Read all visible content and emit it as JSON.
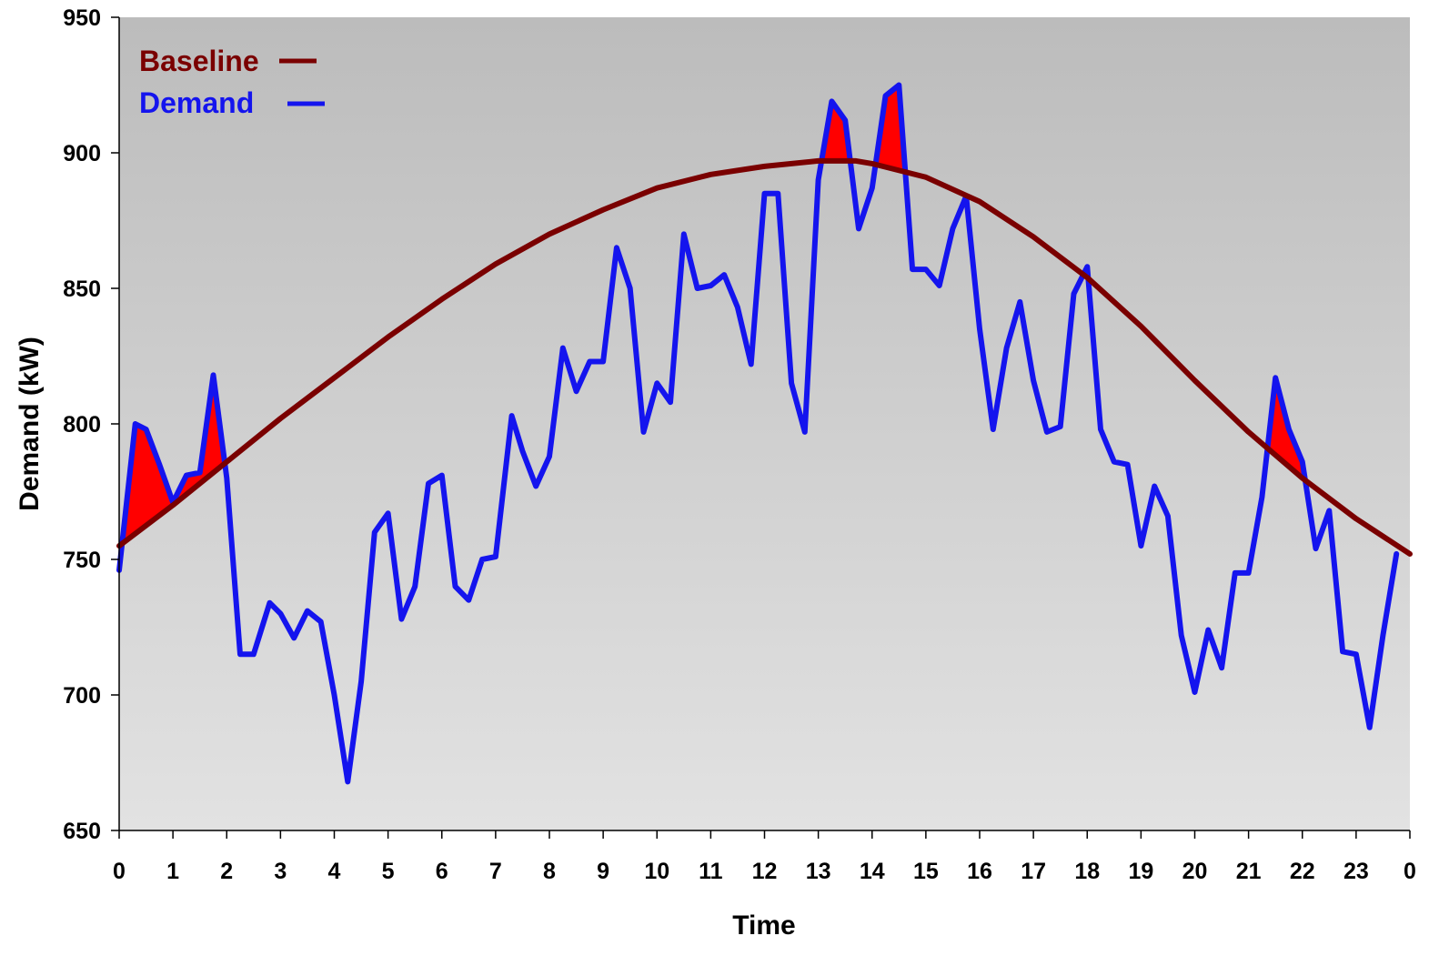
{
  "chart_data": {
    "type": "line",
    "title": "",
    "xlabel": "Time",
    "ylabel": "Demand (kW)",
    "xlim": [
      0,
      24
    ],
    "ylim": [
      650,
      950
    ],
    "y_ticks": [
      650,
      700,
      750,
      800,
      850,
      900,
      950
    ],
    "x_ticks": [
      0,
      1,
      2,
      3,
      4,
      5,
      6,
      7,
      8,
      9,
      10,
      11,
      12,
      13,
      14,
      15,
      16,
      17,
      18,
      19,
      20,
      21,
      22,
      23,
      24
    ],
    "x_tick_labels": [
      "0",
      "1",
      "2",
      "3",
      "4",
      "5",
      "6",
      "7",
      "8",
      "9",
      "10",
      "11",
      "12",
      "13",
      "14",
      "15",
      "16",
      "17",
      "18",
      "19",
      "20",
      "21",
      "22",
      "23",
      "0"
    ],
    "grid": false,
    "legend_position": "top-left",
    "background": "gradient gray (darker top, lighter bottom)",
    "shaded_region": "red fill where Demand exceeds Baseline",
    "colors": {
      "baseline": "#7a0000",
      "demand": "#1414ee",
      "excess_fill": "#ff0000",
      "bg_top": "#bcbcbc",
      "bg_bottom": "#e2e2e2"
    },
    "series": [
      {
        "name": "Baseline",
        "x": [
          0,
          1,
          2,
          3,
          4,
          5,
          6,
          7,
          8,
          9,
          10,
          11,
          12,
          13,
          13.7,
          14,
          15,
          16,
          17,
          18,
          19,
          20,
          21,
          22,
          23,
          24
        ],
        "values": [
          755,
          770,
          786,
          802,
          817,
          832,
          846,
          859,
          870,
          879,
          887,
          892,
          895,
          897,
          897,
          896,
          891,
          882,
          869,
          854,
          836,
          816,
          797,
          780,
          765,
          752
        ]
      },
      {
        "name": "Demand",
        "x": [
          0,
          0.3,
          0.5,
          0.75,
          1.0,
          1.25,
          1.5,
          1.75,
          2.0,
          2.25,
          2.5,
          2.8,
          3.0,
          3.25,
          3.5,
          3.75,
          4.0,
          4.25,
          4.5,
          4.75,
          5.0,
          5.25,
          5.5,
          5.75,
          6.0,
          6.25,
          6.5,
          6.75,
          7.0,
          7.3,
          7.5,
          7.75,
          8.0,
          8.25,
          8.5,
          8.75,
          9.0,
          9.25,
          9.5,
          9.75,
          10.0,
          10.25,
          10.5,
          10.75,
          11.0,
          11.25,
          11.5,
          11.75,
          12.0,
          12.25,
          12.5,
          12.75,
          13.0,
          13.25,
          13.5,
          13.75,
          14.0,
          14.25,
          14.5,
          14.75,
          15.0,
          15.25,
          15.5,
          15.75,
          16.0,
          16.25,
          16.5,
          16.75,
          17.0,
          17.25,
          17.5,
          17.75,
          18.0,
          18.25,
          18.5,
          18.75,
          19.0,
          19.25,
          19.5,
          19.75,
          20.0,
          20.25,
          20.5,
          20.75,
          21.0,
          21.25,
          21.5,
          21.75,
          22.0,
          22.25,
          22.5,
          22.75,
          23.0,
          23.25,
          23.5,
          23.75
        ],
        "values": [
          746,
          800,
          798,
          785,
          771,
          781,
          782,
          818,
          780,
          715,
          715,
          734,
          730,
          721,
          731,
          727,
          700,
          668,
          705,
          760,
          767,
          728,
          740,
          778,
          781,
          740,
          735,
          750,
          751,
          803,
          790,
          777,
          788,
          828,
          812,
          823,
          823,
          865,
          850,
          797,
          815,
          808,
          870,
          850,
          851,
          855,
          843,
          822,
          885,
          885,
          815,
          797,
          890,
          919,
          912,
          872,
          887,
          921,
          925,
          857,
          857,
          851,
          872,
          884,
          835,
          798,
          828,
          845,
          816,
          797,
          799,
          848,
          858,
          798,
          786,
          785,
          755,
          777,
          766,
          722,
          701,
          724,
          710,
          745,
          745,
          773,
          817,
          798,
          786,
          754,
          768,
          716,
          715,
          688,
          722,
          752
        ]
      }
    ]
  },
  "legend": {
    "baseline_label": "Baseline",
    "demand_label": "Demand"
  }
}
